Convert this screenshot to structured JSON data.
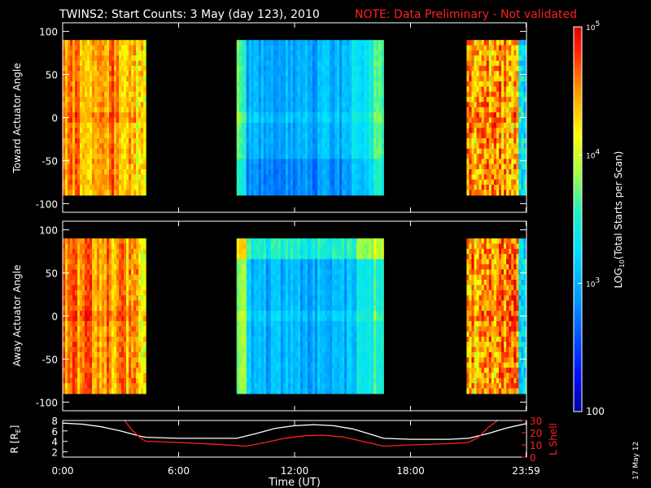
{
  "title": "TWINS2: Start Counts:  3 May (day 123), 2010",
  "note": "NOTE: Data Preliminary - Not validated",
  "date_stamp": "17 May 12",
  "colors": {
    "background": "#000000",
    "axes": "#ffffff",
    "note": "#ff2020",
    "r_line": "#ffffff",
    "l_line": "#ff2020"
  },
  "chart_data": [
    {
      "type": "heatmap",
      "panel": "toward",
      "ylabel": "Toward Actuator Angle",
      "ylim": [
        -110,
        110
      ],
      "yticks": [
        "100",
        "50",
        "0",
        "-50",
        "-100"
      ],
      "data_y_range": [
        -90,
        90
      ],
      "x_range_hours": [
        0,
        24
      ],
      "data_segments_hours": [
        [
          0,
          4.3
        ],
        [
          9.0,
          16.6
        ],
        [
          20.9,
          23.98
        ]
      ],
      "gap_intervals_hours": [
        [
          4.3,
          9.0
        ],
        [
          16.6,
          20.9
        ]
      ],
      "colorscale": "log10"
    },
    {
      "type": "heatmap",
      "panel": "away",
      "ylabel": "Away Actuator Angle",
      "ylim": [
        -110,
        110
      ],
      "yticks": [
        "100",
        "50",
        "0",
        "-50",
        "-100"
      ],
      "data_y_range": [
        -90,
        90
      ],
      "x_range_hours": [
        0,
        24
      ],
      "data_segments_hours": [
        [
          0,
          4.3
        ],
        [
          9.0,
          16.6
        ],
        [
          20.9,
          23.98
        ]
      ],
      "gap_intervals_hours": [
        [
          4.3,
          9.0
        ],
        [
          16.6,
          20.9
        ]
      ],
      "colorscale": "log10"
    },
    {
      "type": "line",
      "panel": "orbit",
      "ylabel_left": "R [R",
      "ylabel_left_sub": "E",
      "ylabel_left_end": "]",
      "ylabel_right": "L Shell",
      "ylim_left": [
        1,
        8
      ],
      "ylim_right": [
        0,
        30
      ],
      "yticks_left": [
        "8",
        "6",
        "4",
        "2"
      ],
      "yticks_right": [
        "30",
        "20",
        "10",
        "0"
      ],
      "xlabel": "Time (UT)",
      "xticks": [
        "0:00",
        "6:00",
        "12:00",
        "18:00",
        "23:59"
      ],
      "xtick_hours": [
        0,
        6,
        12,
        18,
        23.98
      ],
      "series": [
        {
          "name": "R",
          "axis": "left",
          "x": [
            0,
            1,
            2,
            3,
            4,
            4.3,
            6,
            8,
            9,
            10,
            11,
            12,
            13,
            14,
            15,
            16,
            16.6,
            18,
            20,
            21,
            22,
            23,
            23.98
          ],
          "y": [
            7.5,
            7.3,
            6.8,
            6.0,
            5.0,
            4.8,
            4.6,
            4.6,
            4.6,
            5.5,
            6.5,
            7.0,
            7.2,
            7.0,
            6.4,
            5.3,
            4.6,
            4.4,
            4.4,
            4.6,
            5.5,
            6.6,
            7.4
          ]
        },
        {
          "name": "L Shell",
          "axis": "right",
          "x": [
            3.2,
            3.6,
            4.0,
            4.3,
            6,
            8,
            9.5,
            10.5,
            11.5,
            12.5,
            13.5,
            14.5,
            15.5,
            16.6,
            18,
            20,
            21,
            21.5,
            22,
            22.5
          ],
          "y": [
            30,
            22,
            16,
            13,
            12,
            10.5,
            9,
            12,
            15.5,
            17.5,
            18,
            16.5,
            13,
            9,
            10,
            11,
            12,
            16,
            24,
            30
          ]
        }
      ]
    }
  ],
  "colorbar": {
    "label_main": "LOG",
    "label_sub": "10",
    "label_rest": "(Total Starts per Scan)",
    "ticks": [
      {
        "base": "10",
        "exp": "5",
        "value": 100000
      },
      {
        "base": "10",
        "exp": "4",
        "value": 10000
      },
      {
        "base": "10",
        "exp": "3",
        "value": 1000
      },
      {
        "base": "100",
        "exp": "",
        "value": 100
      }
    ],
    "range": [
      100,
      100000
    ]
  }
}
